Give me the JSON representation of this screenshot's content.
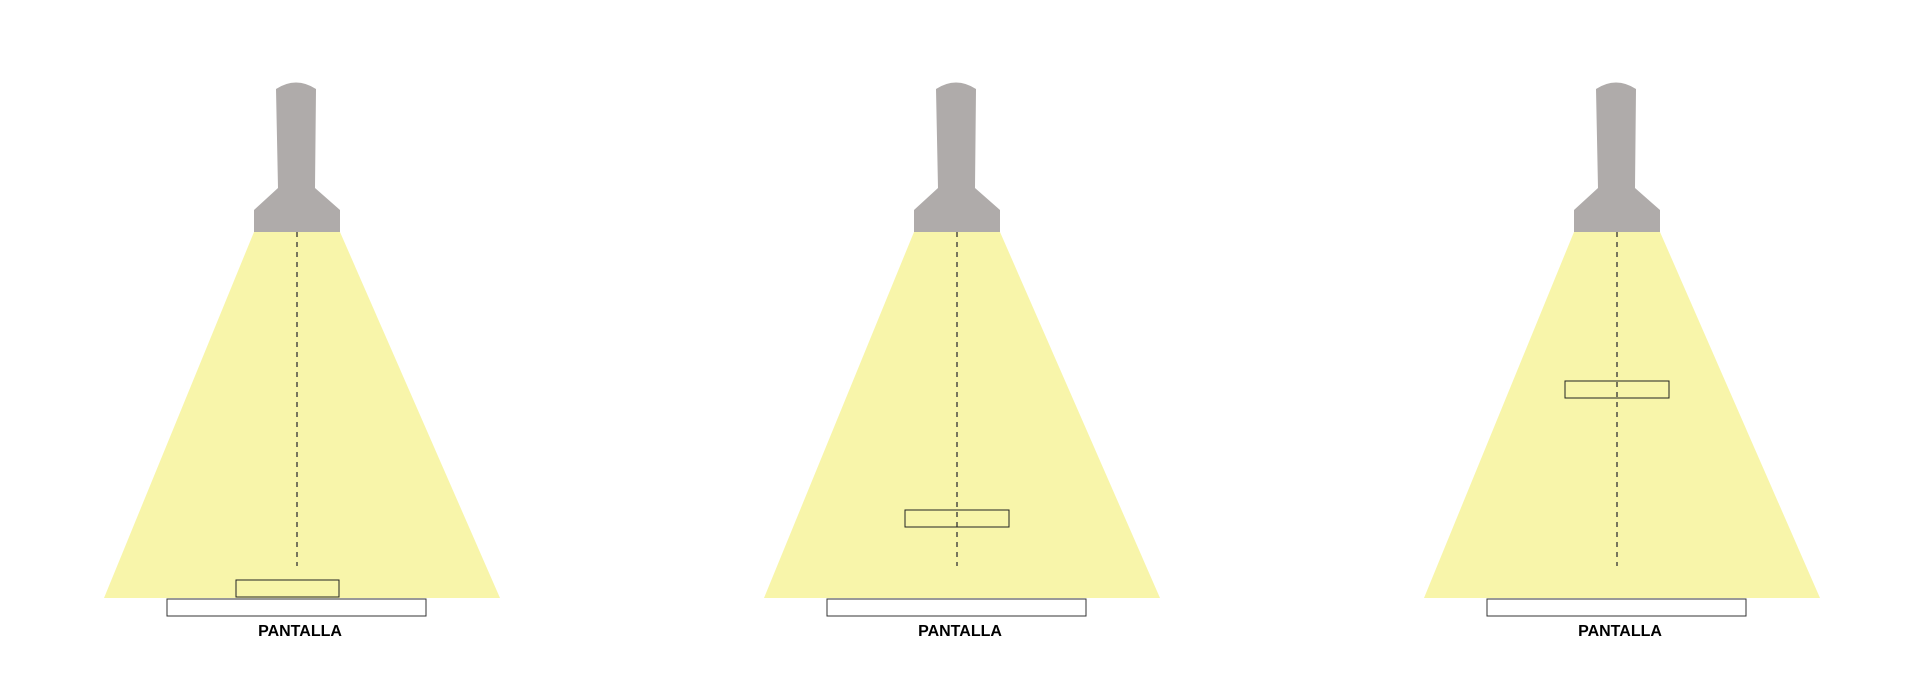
{
  "colors": {
    "beam": "#f8f5aa",
    "lamp": "#afabaa",
    "axis": "#333333",
    "object_stroke": "#222222",
    "screen_stroke": "#333333",
    "screen_fill": "#ffffff",
    "label": "#000000"
  },
  "icons": {
    "lamp": "spotlight-icon"
  },
  "panels": [
    {
      "screen_label": "PANTALLA",
      "object_position": "at-screen"
    },
    {
      "screen_label": "PANTALLA",
      "object_position": "near-screen"
    },
    {
      "screen_label": "PANTALLA",
      "object_position": "near-lamp"
    }
  ]
}
